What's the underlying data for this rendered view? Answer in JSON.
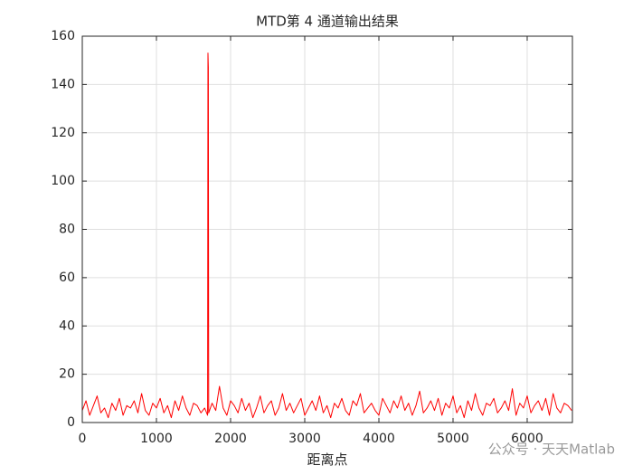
{
  "chart_data": {
    "type": "line",
    "title": "MTD第 4 通道输出结果",
    "x_label": "距离点",
    "x": [
      0,
      50,
      100,
      150,
      200,
      250,
      300,
      350,
      400,
      450,
      500,
      550,
      600,
      650,
      700,
      750,
      800,
      850,
      900,
      950,
      1000,
      1050,
      1100,
      1150,
      1200,
      1250,
      1300,
      1350,
      1400,
      1450,
      1500,
      1550,
      1600,
      1650,
      1690,
      1695,
      1700,
      1705,
      1750,
      1800,
      1850,
      1900,
      1950,
      2000,
      2050,
      2100,
      2150,
      2200,
      2250,
      2300,
      2350,
      2400,
      2450,
      2500,
      2550,
      2600,
      2650,
      2700,
      2750,
      2800,
      2850,
      2900,
      2950,
      3000,
      3050,
      3100,
      3150,
      3200,
      3250,
      3300,
      3350,
      3400,
      3450,
      3500,
      3550,
      3600,
      3650,
      3700,
      3750,
      3800,
      3850,
      3900,
      3950,
      4000,
      4050,
      4100,
      4150,
      4200,
      4250,
      4300,
      4350,
      4400,
      4450,
      4500,
      4550,
      4600,
      4650,
      4700,
      4750,
      4800,
      4850,
      4900,
      4950,
      5000,
      5050,
      5100,
      5150,
      5200,
      5250,
      5300,
      5350,
      5400,
      5450,
      5500,
      5550,
      5600,
      5650,
      5700,
      5750,
      5800,
      5850,
      5900,
      5950,
      6000,
      6050,
      6100,
      6150,
      6200,
      6250,
      6300,
      6350,
      6400,
      6450,
      6500,
      6550,
      6600
    ],
    "values": [
      5,
      9,
      3,
      7,
      11,
      4,
      6,
      2,
      8,
      5,
      10,
      3,
      7,
      6,
      9,
      4,
      12,
      5,
      3,
      8,
      6,
      10,
      4,
      7,
      2,
      9,
      5,
      11,
      6,
      3,
      8,
      7,
      4,
      6,
      3,
      153,
      147,
      4,
      8,
      5,
      15,
      6,
      3,
      9,
      7,
      4,
      10,
      5,
      8,
      2,
      6,
      11,
      4,
      7,
      9,
      3,
      6,
      12,
      5,
      8,
      4,
      7,
      10,
      3,
      6,
      9,
      5,
      11,
      4,
      7,
      2,
      8,
      6,
      10,
      5,
      3,
      9,
      7,
      12,
      4,
      6,
      8,
      5,
      3,
      10,
      7,
      4,
      9,
      6,
      11,
      5,
      8,
      3,
      7,
      13,
      4,
      6,
      9,
      5,
      10,
      3,
      8,
      6,
      11,
      4,
      7,
      2,
      9,
      5,
      12,
      6,
      3,
      8,
      7,
      10,
      4,
      6,
      9,
      5,
      14,
      3,
      8,
      6,
      11,
      4,
      7,
      9,
      5,
      10,
      3,
      12,
      6,
      4,
      8,
      7,
      5
    ],
    "color": "#ff0000",
    "xlim": [
      0,
      6610
    ],
    "ylim": [
      0,
      160
    ],
    "xticks": [
      0,
      1000,
      2000,
      3000,
      4000,
      5000,
      6000
    ],
    "yticks": [
      0,
      20,
      40,
      60,
      80,
      100,
      120,
      140,
      160
    ],
    "grid": true
  },
  "watermark": "公众号 · 天天Matlab"
}
